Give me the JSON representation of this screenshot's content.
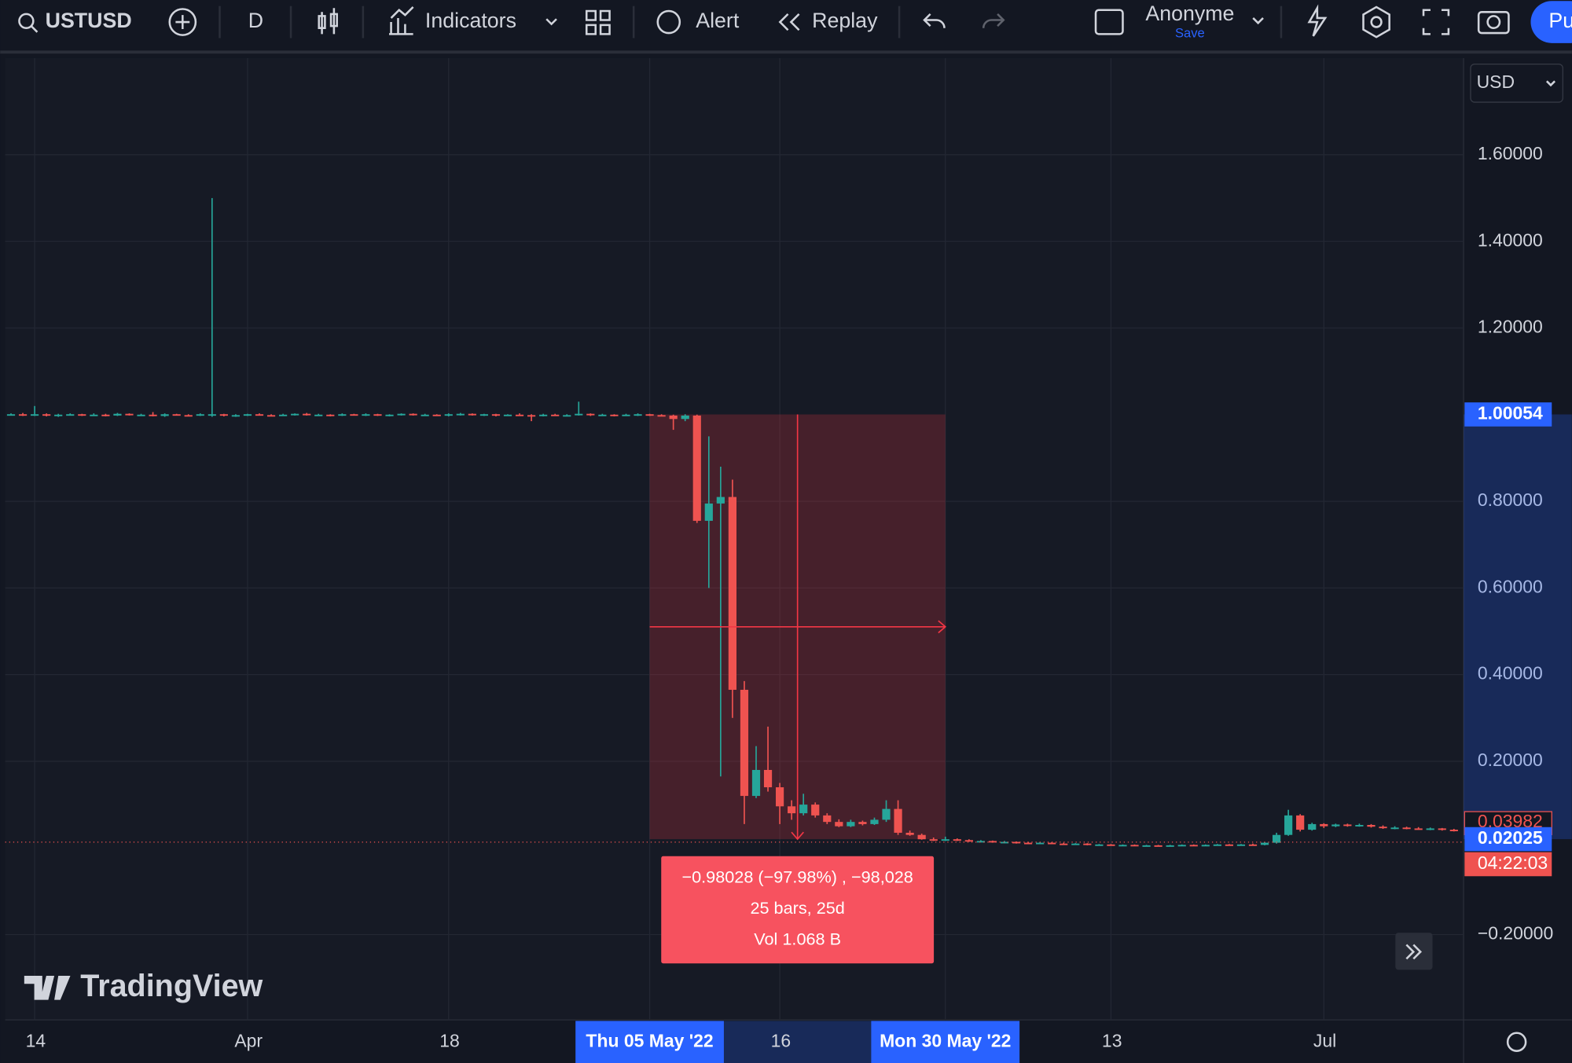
{
  "toolbar": {
    "symbol": "USTUSD",
    "interval": "D",
    "indicators": "Indicators",
    "alert": "Alert",
    "replay": "Replay",
    "user": "Anonyme",
    "save": "Save",
    "publish": "Pu"
  },
  "currency": "USD",
  "logo": "TradingView",
  "chart_data": {
    "type": "candlestick",
    "up_color": "#26a69a",
    "down_color": "#ef5350",
    "categories": [
      null,
      null,
      "14",
      null,
      null,
      null,
      null,
      null,
      null,
      null,
      null,
      null,
      null,
      null,
      null,
      null,
      null,
      null,
      null,
      null,
      "Apr",
      null,
      null,
      null,
      null,
      null,
      null,
      null,
      null,
      null,
      null,
      null,
      null,
      null,
      null,
      null,
      null,
      "18",
      null,
      null,
      null,
      null,
      null,
      null,
      null,
      null,
      null,
      null,
      null,
      null,
      null,
      null,
      null,
      null,
      "Thu 05 May '22",
      null,
      null,
      null,
      null,
      null,
      null,
      null,
      null,
      null,
      null,
      "16",
      null,
      null,
      null,
      null,
      null,
      null,
      null,
      null,
      null,
      null,
      null,
      null,
      null,
      "Mon 30 May '22",
      null,
      null,
      null,
      null,
      null,
      null,
      null,
      null,
      null,
      null,
      null,
      null,
      null,
      "13",
      null,
      null,
      null,
      null,
      null,
      null,
      null,
      null,
      null,
      null,
      null,
      null,
      null,
      null,
      null,
      null,
      null,
      "Jul",
      null,
      null,
      null,
      null,
      null,
      null,
      null,
      null,
      null,
      null,
      null
    ],
    "ohlc": [
      [
        1.0,
        1.003,
        0.998,
        1.001
      ],
      [
        1.001,
        1.004,
        0.997,
        0.999
      ],
      [
        0.999,
        1.02,
        0.997,
        1.001
      ],
      [
        1.001,
        1.003,
        0.996,
        0.998
      ],
      [
        0.998,
        1.002,
        0.995,
        1.0
      ],
      [
        1.0,
        1.003,
        0.998,
        1.001
      ],
      [
        1.001,
        1.002,
        0.997,
        0.999
      ],
      [
        0.999,
        1.003,
        0.998,
        1.0
      ],
      [
        1.0,
        1.002,
        0.996,
        0.998
      ],
      [
        0.998,
        1.004,
        0.997,
        1.002
      ],
      [
        1.002,
        1.003,
        0.998,
        0.999
      ],
      [
        0.999,
        1.002,
        0.997,
        1.0
      ],
      [
        1.0,
        1.006,
        0.996,
        0.997
      ],
      [
        0.997,
        1.003,
        0.995,
        1.001
      ],
      [
        1.001,
        1.002,
        0.998,
        0.999
      ],
      [
        0.999,
        1.001,
        0.996,
        0.998
      ],
      [
        0.998,
        1.003,
        0.997,
        1.001
      ],
      [
        0.998,
        1.5,
        0.995,
        1.001
      ],
      [
        1.001,
        1.002,
        0.996,
        0.998
      ],
      [
        0.998,
        1.001,
        0.995,
        0.999
      ],
      [
        0.999,
        1.002,
        0.997,
        1.001
      ],
      [
        1.001,
        1.003,
        0.998,
        0.999
      ],
      [
        0.999,
        1.001,
        0.996,
        0.998
      ],
      [
        0.998,
        1.002,
        0.997,
        1.0
      ],
      [
        1.0,
        1.003,
        0.998,
        1.002
      ],
      [
        1.002,
        1.004,
        0.998,
        0.999
      ],
      [
        0.999,
        1.002,
        0.997,
        1.0
      ],
      [
        1.0,
        1.001,
        0.996,
        0.998
      ],
      [
        0.998,
        1.003,
        0.997,
        1.001
      ],
      [
        1.001,
        1.002,
        0.998,
        0.999
      ],
      [
        0.999,
        1.003,
        0.997,
        1.001
      ],
      [
        1.001,
        1.002,
        0.997,
        0.998
      ],
      [
        0.998,
        1.001,
        0.996,
        1.0
      ],
      [
        1.0,
        1.003,
        0.998,
        1.002
      ],
      [
        1.002,
        1.003,
        0.998,
        0.999
      ],
      [
        0.999,
        1.002,
        0.997,
        1.0
      ],
      [
        1.0,
        1.001,
        0.997,
        0.998
      ],
      [
        0.998,
        1.003,
        0.996,
        1.001
      ],
      [
        1.001,
        1.004,
        0.998,
        1.002
      ],
      [
        1.002,
        1.003,
        0.998,
        0.999
      ],
      [
        0.999,
        1.002,
        0.997,
        1.001
      ],
      [
        1.001,
        1.002,
        0.996,
        0.998
      ],
      [
        0.998,
        1.001,
        0.997,
        1.0
      ],
      [
        1.0,
        1.003,
        0.998,
        0.999
      ],
      [
        0.999,
        1.001,
        0.985,
        0.997
      ],
      [
        0.997,
        1.002,
        0.996,
        1.0
      ],
      [
        1.0,
        1.002,
        0.997,
        0.998
      ],
      [
        0.998,
        1.001,
        0.996,
        0.999
      ],
      [
        0.999,
        1.03,
        0.998,
        1.002
      ],
      [
        1.002,
        1.003,
        0.997,
        0.999
      ],
      [
        0.999,
        1.002,
        0.997,
        1.0
      ],
      [
        1.0,
        1.001,
        0.996,
        0.998
      ],
      [
        0.998,
        1.002,
        0.997,
        1.0
      ],
      [
        1.0,
        1.003,
        0.997,
        1.001
      ],
      [
        1.001,
        1.002,
        0.997,
        0.999
      ],
      [
        0.999,
        1.001,
        0.996,
        0.998
      ],
      [
        0.998,
        1.0,
        0.965,
        0.99
      ],
      [
        0.99,
        1.001,
        0.985,
        0.998
      ],
      [
        0.998,
        1.0,
        0.75,
        0.755
      ],
      [
        0.755,
        0.95,
        0.6,
        0.795
      ],
      [
        0.795,
        0.88,
        0.165,
        0.81
      ],
      [
        0.81,
        0.85,
        0.3,
        0.365
      ],
      [
        0.365,
        0.385,
        0.055,
        0.12
      ],
      [
        0.12,
        0.235,
        0.115,
        0.18
      ],
      [
        0.18,
        0.28,
        0.13,
        0.14
      ],
      [
        0.14,
        0.15,
        0.055,
        0.096
      ],
      [
        0.096,
        0.11,
        0.065,
        0.08
      ],
      [
        0.08,
        0.125,
        0.075,
        0.1
      ],
      [
        0.1,
        0.105,
        0.07,
        0.075
      ],
      [
        0.075,
        0.08,
        0.055,
        0.06
      ],
      [
        0.06,
        0.066,
        0.048,
        0.05
      ],
      [
        0.05,
        0.065,
        0.048,
        0.06
      ],
      [
        0.06,
        0.063,
        0.052,
        0.055
      ],
      [
        0.055,
        0.07,
        0.053,
        0.065
      ],
      [
        0.065,
        0.11,
        0.06,
        0.09
      ],
      [
        0.09,
        0.11,
        0.03,
        0.035
      ],
      [
        0.035,
        0.04,
        0.028,
        0.03
      ],
      [
        0.03,
        0.033,
        0.019,
        0.02
      ],
      [
        0.02,
        0.024,
        0.016,
        0.018
      ],
      [
        0.018,
        0.026,
        0.016,
        0.02
      ],
      [
        0.02,
        0.022,
        0.016,
        0.018
      ],
      [
        0.018,
        0.02,
        0.014,
        0.015
      ],
      [
        0.015,
        0.018,
        0.013,
        0.016
      ],
      [
        0.016,
        0.017,
        0.012,
        0.013
      ],
      [
        0.013,
        0.016,
        0.011,
        0.014
      ],
      [
        0.014,
        0.015,
        0.01,
        0.012
      ],
      [
        0.012,
        0.014,
        0.01,
        0.011
      ],
      [
        0.011,
        0.013,
        0.009,
        0.012
      ],
      [
        0.012,
        0.013,
        0.009,
        0.01
      ],
      [
        0.01,
        0.012,
        0.008,
        0.009
      ],
      [
        0.009,
        0.011,
        0.007,
        0.01
      ],
      [
        0.01,
        0.011,
        0.006,
        0.007
      ],
      [
        0.007,
        0.009,
        0.005,
        0.008
      ],
      [
        0.008,
        0.009,
        0.005,
        0.006
      ],
      [
        0.006,
        0.008,
        0.004,
        0.007
      ],
      [
        0.007,
        0.008,
        0.004,
        0.005
      ],
      [
        0.005,
        0.007,
        0.004,
        0.006
      ],
      [
        0.006,
        0.007,
        0.004,
        0.005
      ],
      [
        0.005,
        0.007,
        0.004,
        0.006
      ],
      [
        0.006,
        0.008,
        0.005,
        0.007
      ],
      [
        0.007,
        0.008,
        0.005,
        0.006
      ],
      [
        0.006,
        0.008,
        0.005,
        0.007
      ],
      [
        0.007,
        0.009,
        0.006,
        0.008
      ],
      [
        0.008,
        0.009,
        0.006,
        0.007
      ],
      [
        0.007,
        0.009,
        0.006,
        0.008
      ],
      [
        0.008,
        0.01,
        0.006,
        0.007
      ],
      [
        0.007,
        0.013,
        0.006,
        0.012
      ],
      [
        0.012,
        0.035,
        0.01,
        0.03
      ],
      [
        0.03,
        0.088,
        0.028,
        0.075
      ],
      [
        0.075,
        0.078,
        0.038,
        0.042
      ],
      [
        0.042,
        0.058,
        0.04,
        0.055
      ],
      [
        0.055,
        0.057,
        0.046,
        0.05
      ],
      [
        0.05,
        0.056,
        0.048,
        0.054
      ],
      [
        0.054,
        0.056,
        0.049,
        0.051
      ],
      [
        0.051,
        0.056,
        0.049,
        0.053
      ],
      [
        0.053,
        0.055,
        0.047,
        0.049
      ],
      [
        0.049,
        0.052,
        0.044,
        0.046
      ],
      [
        0.046,
        0.05,
        0.043,
        0.047
      ],
      [
        0.047,
        0.049,
        0.043,
        0.045
      ],
      [
        0.045,
        0.048,
        0.042,
        0.044
      ],
      [
        0.044,
        0.047,
        0.041,
        0.045
      ],
      [
        0.045,
        0.046,
        0.04,
        0.042
      ],
      [
        0.042,
        0.044,
        0.038,
        0.03982
      ]
    ],
    "ylim": [
      -0.397,
      1.823
    ],
    "yticks": [
      {
        "value": -0.2,
        "label": "−0.20000"
      },
      {
        "value": 0.2,
        "label": "0.20000"
      },
      {
        "value": 0.4,
        "label": "0.40000"
      },
      {
        "value": 0.6,
        "label": "0.60000"
      },
      {
        "value": 0.8,
        "label": "0.80000"
      },
      {
        "value": 1.2,
        "label": "1.20000"
      },
      {
        "value": 1.4,
        "label": "1.40000"
      },
      {
        "value": 1.6,
        "label": "1.60000"
      }
    ],
    "grid": true,
    "last_price": {
      "value": 0.03982,
      "label": "0.03982"
    },
    "countdown": "04:22:03",
    "measure": {
      "start_index": 54,
      "end_index": 79,
      "start_price": {
        "value": 1.00054,
        "label": "1.00054"
      },
      "end_price": {
        "value": 0.02025,
        "label": "0.02025"
      },
      "lines": [
        "−0.98028 (−97.98%) , −98,028",
        "25 bars, 25d",
        "Vol 1.068 B"
      ]
    }
  }
}
